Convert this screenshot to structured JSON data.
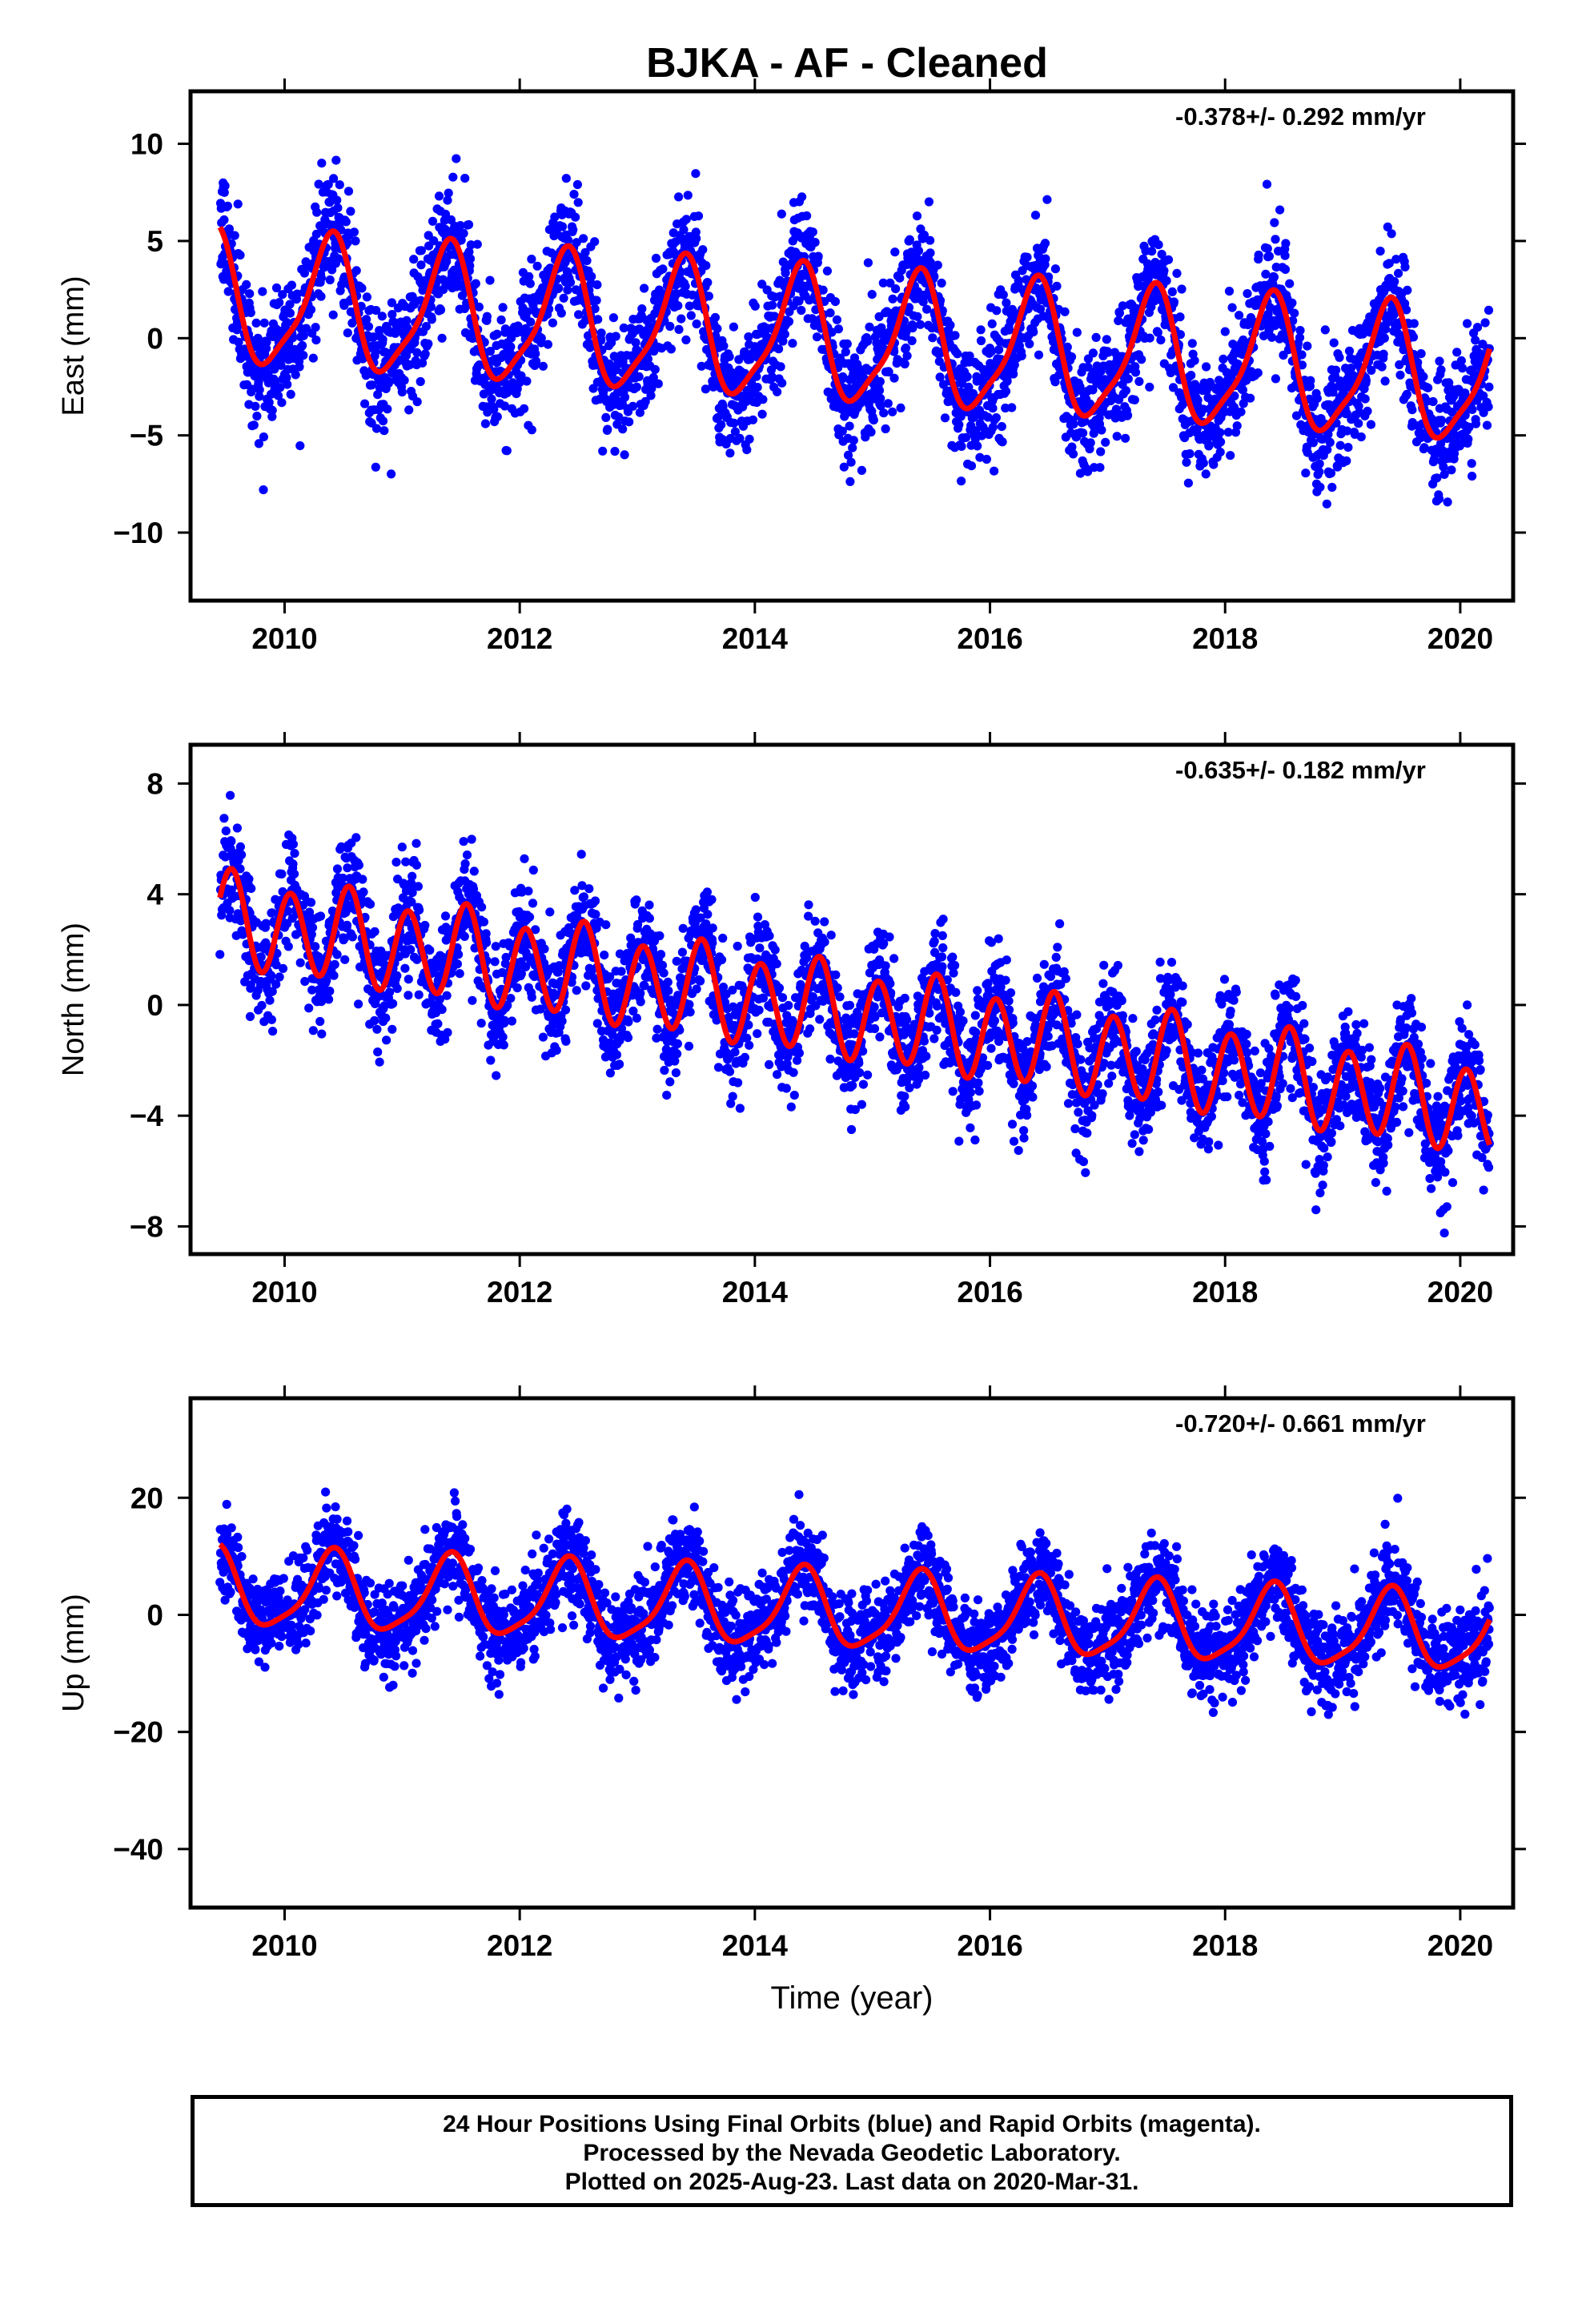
{
  "title": "BJKA  - AF - Cleaned",
  "colors": {
    "points": "#0000ff",
    "fit": "#ff0000",
    "frame": "#000000"
  },
  "footer": {
    "line1": "24 Hour Positions Using Final Orbits (blue) and Rapid Orbits (magenta).",
    "line2": "Processed by the Nevada Geodetic Laboratory.",
    "line3": "Plotted on 2025-Aug-23. Last data on 2020-Mar-31."
  },
  "chart_data": [
    {
      "type": "scatter",
      "component": "east",
      "ylabel": "East (mm)",
      "xlabel": "",
      "annotation": "-0.378+/- 0.292 mm/yr",
      "xlim": [
        2009.2,
        2020.45
      ],
      "ylim": [
        -13.5,
        12.7
      ],
      "x_ticks": [
        2010,
        2012,
        2014,
        2016,
        2018,
        2020
      ],
      "y_ticks": [
        10,
        5,
        0,
        -5,
        -10
      ],
      "y_tick_labels": [
        "10",
        "5",
        "0",
        "−5",
        "−10"
      ],
      "data_span": [
        2009.45,
        2020.25
      ],
      "trend_mm_per_yr": -0.378,
      "fit_model": {
        "t0": 2014.8,
        "offset": -0.1,
        "annual_amp": 3.3,
        "annual_peak": 2009.38,
        "semiannual_amp": 0.8,
        "semiannual_peak": 2009.45
      },
      "scatter_sigma": 1.6,
      "series": [
        {
          "name": "Final Orbits (blue)",
          "role": "points"
        },
        {
          "name": "fit",
          "role": "line"
        }
      ]
    },
    {
      "type": "scatter",
      "component": "north",
      "ylabel": "North (mm)",
      "xlabel": "",
      "annotation": "-0.635+/- 0.182 mm/yr",
      "xlim": [
        2009.2,
        2020.45
      ],
      "ylim": [
        -9.0,
        9.4
      ],
      "x_ticks": [
        2010,
        2012,
        2014,
        2016,
        2018,
        2020
      ],
      "y_ticks": [
        8,
        4,
        0,
        -4,
        -8
      ],
      "y_tick_labels": [
        "8",
        "4",
        "0",
        "−4",
        "−8"
      ],
      "data_span": [
        2009.45,
        2020.25
      ],
      "trend_mm_per_yr": -0.635,
      "fit_model": {
        "t0": 2014.8,
        "offset": -0.3,
        "annual_amp": 0.3,
        "annual_peak": 2009.5,
        "semiannual_amp": 1.6,
        "semiannual_peak": 2009.55
      },
      "scatter_sigma": 1.0,
      "series": [
        {
          "name": "Final Orbits (blue)",
          "role": "points"
        },
        {
          "name": "fit",
          "role": "line"
        }
      ]
    },
    {
      "type": "scatter",
      "component": "up",
      "ylabel": "Up (mm)",
      "xlabel": "Time (year)",
      "annotation": "-0.720+/- 0.661 mm/yr",
      "xlim": [
        2009.2,
        2020.45
      ],
      "ylim": [
        -50,
        37
      ],
      "x_ticks": [
        2010,
        2012,
        2014,
        2016,
        2018,
        2020
      ],
      "y_ticks": [
        20,
        0,
        -20,
        -40
      ],
      "y_tick_labels": [
        "20",
        "0",
        "−20",
        "−40"
      ],
      "data_span": [
        2009.45,
        2020.25
      ],
      "trend_mm_per_yr": -0.72,
      "fit_model": {
        "t0": 2014.8,
        "offset": 0.5,
        "annual_amp": 6.5,
        "annual_peak": 2009.4,
        "semiannual_amp": 1.5,
        "semiannual_peak": 2009.45
      },
      "scatter_sigma": 4.0,
      "series": [
        {
          "name": "Final Orbits (blue)",
          "role": "points"
        },
        {
          "name": "fit",
          "role": "line"
        }
      ]
    }
  ]
}
